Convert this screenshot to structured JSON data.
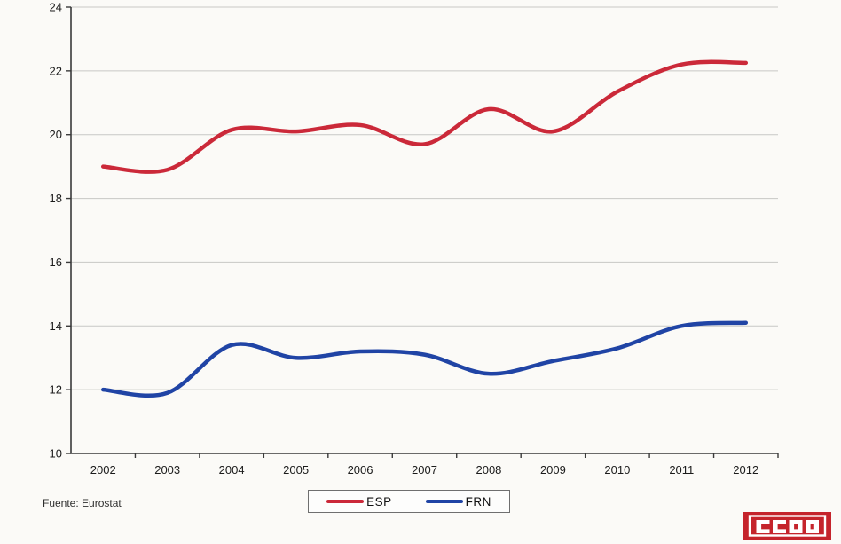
{
  "page": {
    "background": "#fbfaf7"
  },
  "source_note": "Fuente: Eurostat",
  "logo": {
    "text": "CCOO",
    "background_color": "#c5242c",
    "foreground_color": "#ffffff"
  },
  "chart_data": {
    "type": "line",
    "smoothed": true,
    "title": "",
    "xlabel": "",
    "ylabel": "",
    "categories": [
      "2002",
      "2003",
      "2004",
      "2005",
      "2006",
      "2007",
      "2008",
      "2009",
      "2010",
      "2011",
      "2012"
    ],
    "series": [
      {
        "name": "ESP",
        "color": "#cb2939",
        "values": [
          19.0,
          18.9,
          20.15,
          20.1,
          20.3,
          19.7,
          20.8,
          20.1,
          21.35,
          22.2,
          22.25
        ]
      },
      {
        "name": "FRN",
        "color": "#2044a5",
        "values": [
          12.0,
          11.9,
          13.4,
          13.0,
          13.2,
          13.1,
          12.5,
          12.9,
          13.3,
          14.0,
          14.1
        ]
      }
    ],
    "ylim": [
      10,
      24
    ],
    "ytick_step": 2,
    "yticks": [
      10,
      12,
      14,
      16,
      18,
      20,
      22,
      24
    ],
    "grid": true,
    "legend_position": "bottom",
    "axis_color": "#3a3a3a",
    "grid_color": "#c8c8c5"
  }
}
